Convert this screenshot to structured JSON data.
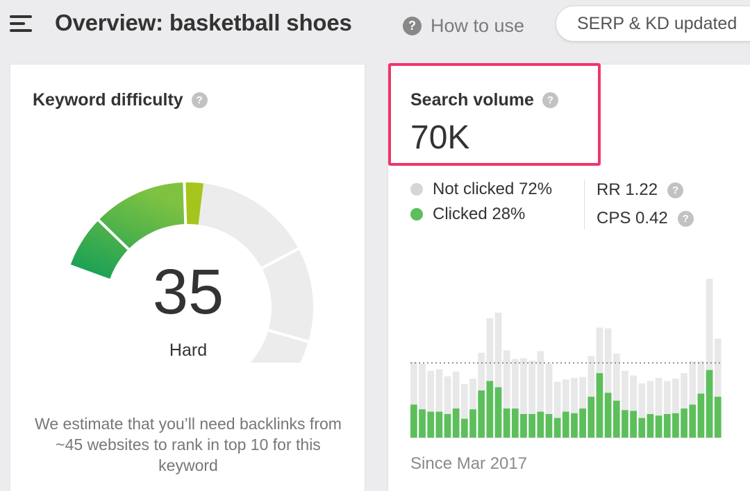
{
  "header": {
    "title": "Overview: basketball shoes",
    "how_to_label": "How to use",
    "serp_pill": "SERP & KD updated"
  },
  "keyword_difficulty": {
    "heading": "Keyword difficulty",
    "value": "35",
    "level": "Hard",
    "description": "We estimate that you’ll need backlinks from ~45 websites to rank in top 10 for this keyword",
    "gauge_fraction": 0.35,
    "gauge_colors": {
      "filled_start": "#0f9d58",
      "filled_end": "#a5c51d",
      "track": "#ececec"
    }
  },
  "search_volume": {
    "heading": "Search volume",
    "value": "70K",
    "not_clicked": "Not clicked 72%",
    "clicked": "Clicked 28%",
    "rr": "RR 1.22",
    "cps": "CPS 0.42",
    "since": "Since Mar 2017",
    "highlight_color": "#f0356b"
  },
  "chart_data": {
    "type": "bar",
    "stacked": true,
    "series": [
      {
        "name": "Clicked",
        "color": "#5cbf5c",
        "values": [
          42,
          36,
          33,
          33,
          30,
          37,
          24,
          36,
          60,
          72,
          64,
          37,
          37,
          30,
          30,
          33,
          30,
          25,
          33,
          31,
          37,
          52,
          82,
          57,
          47,
          35,
          34,
          25,
          30,
          28,
          30,
          31,
          37,
          42,
          56,
          86,
          52
        ]
      },
      {
        "name": "Not clicked",
        "color": "#e8e8e8",
        "values": [
          54,
          58,
          52,
          54,
          48,
          47,
          44,
          39,
          48,
          80,
          95,
          74,
          63,
          71,
          68,
          77,
          64,
          46,
          41,
          45,
          40,
          52,
          58,
          82,
          60,
          50,
          45,
          44,
          42,
          48,
          42,
          44,
          45,
          55,
          41,
          116,
          74
        ]
      }
    ],
    "average": 95,
    "ylim": [
      0,
      210
    ]
  }
}
